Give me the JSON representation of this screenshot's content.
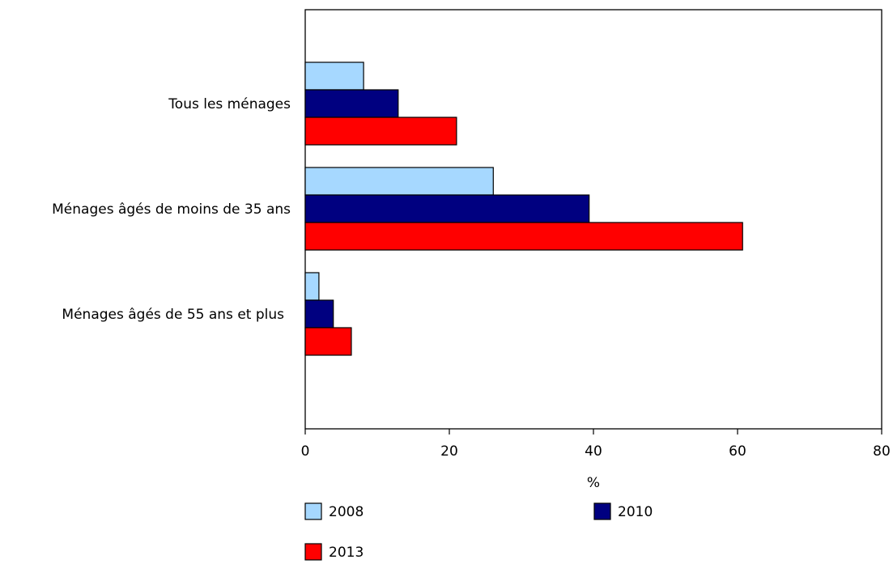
{
  "chart_data": {
    "type": "bar",
    "orientation": "horizontal",
    "categories": [
      "Tous les ménages",
      "Ménages âgés de moins de 35 ans",
      "Ménages âgés de 55 ans et plus"
    ],
    "series": [
      {
        "name": "2008",
        "values": [
          8.1,
          26.1,
          1.9
        ],
        "color": "#a6d8ff"
      },
      {
        "name": "2010",
        "values": [
          12.9,
          39.4,
          3.9
        ],
        "color": "#000080"
      },
      {
        "name": "2013",
        "values": [
          21.0,
          60.7,
          6.4
        ],
        "color": "#ff0000"
      }
    ],
    "xlabel": "%",
    "ylabel": "",
    "xlim": [
      0,
      80
    ],
    "xticks": [
      0,
      20,
      40,
      60,
      80
    ],
    "grid": false,
    "legend_position": "bottom"
  }
}
